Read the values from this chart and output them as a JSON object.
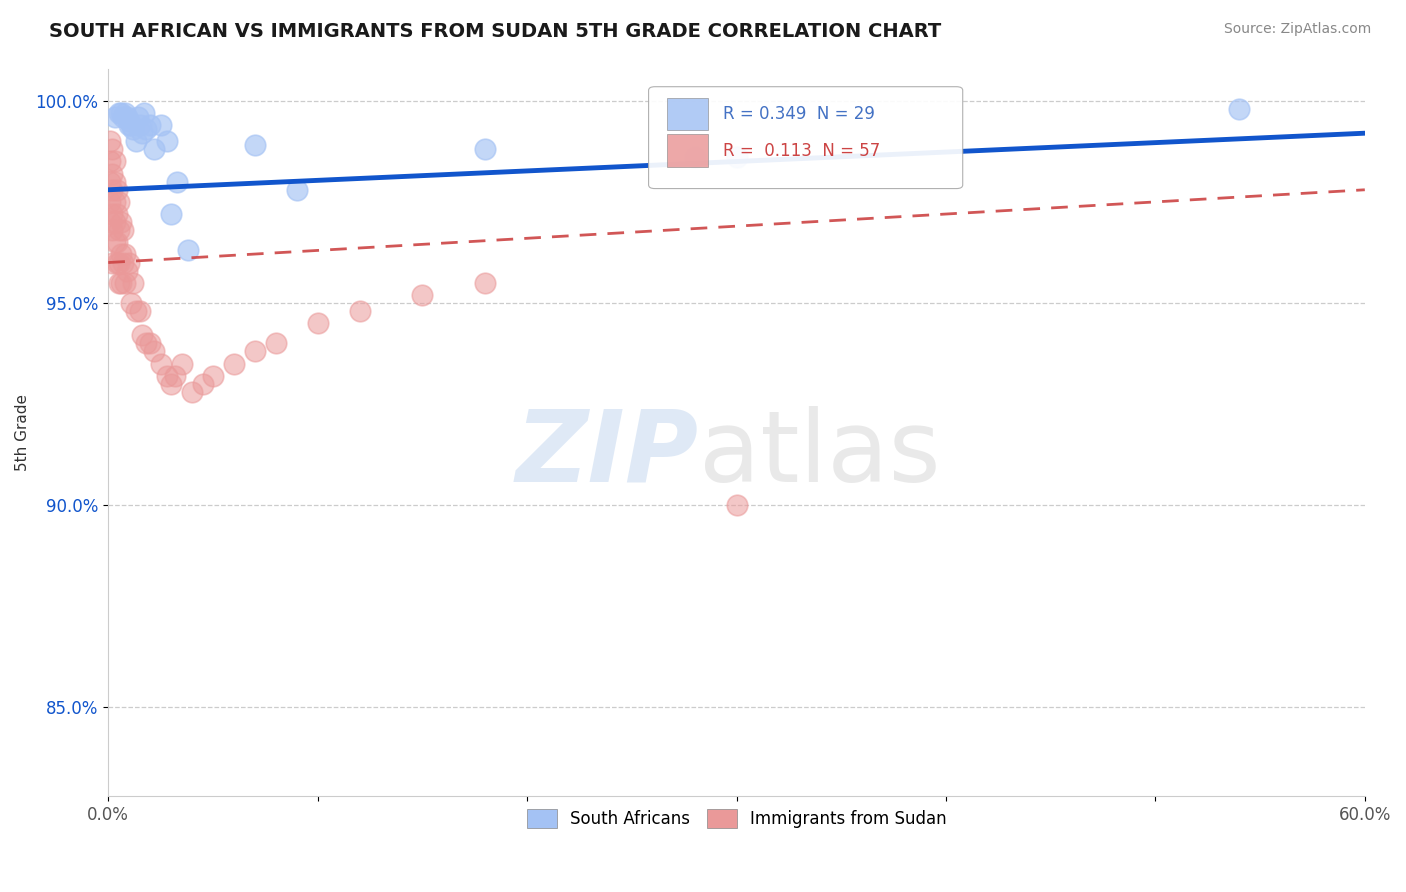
{
  "title": "SOUTH AFRICAN VS IMMIGRANTS FROM SUDAN 5TH GRADE CORRELATION CHART",
  "source_text": "Source: ZipAtlas.com",
  "ylabel": "5th Grade",
  "xlim": [
    0.0,
    0.6
  ],
  "ylim": [
    0.828,
    1.008
  ],
  "xticks": [
    0.0,
    0.1,
    0.2,
    0.3,
    0.4,
    0.5,
    0.6
  ],
  "xticklabels": [
    "0.0%",
    "",
    "",
    "",
    "",
    "",
    "60.0%"
  ],
  "yticks": [
    0.85,
    0.9,
    0.95,
    1.0
  ],
  "yticklabels": [
    "85.0%",
    "90.0%",
    "95.0%",
    "100.0%"
  ],
  "blue_R": 0.349,
  "blue_N": 29,
  "pink_R": 0.113,
  "pink_N": 57,
  "blue_color": "#a4c2f4",
  "pink_color": "#ea9999",
  "blue_line_color": "#1155cc",
  "pink_line_color": "#cc4444",
  "legend_R_color": "#4472c4",
  "legend_r_color": "#cc4444",
  "blue_scatter_x": [
    0.003,
    0.005,
    0.006,
    0.007,
    0.008,
    0.009,
    0.01,
    0.01,
    0.011,
    0.012,
    0.013,
    0.014,
    0.015,
    0.016,
    0.017,
    0.018,
    0.02,
    0.022,
    0.025,
    0.028,
    0.03,
    0.033,
    0.038,
    0.07,
    0.09,
    0.18,
    0.28,
    0.3,
    0.54
  ],
  "blue_scatter_y": [
    0.996,
    0.997,
    0.997,
    0.996,
    0.997,
    0.996,
    0.995,
    0.994,
    0.994,
    0.993,
    0.99,
    0.996,
    0.994,
    0.992,
    0.997,
    0.993,
    0.994,
    0.988,
    0.994,
    0.99,
    0.972,
    0.98,
    0.963,
    0.989,
    0.978,
    0.988,
    0.986,
    0.986,
    0.998
  ],
  "pink_scatter_x": [
    0.001,
    0.001,
    0.001,
    0.001,
    0.001,
    0.002,
    0.002,
    0.002,
    0.002,
    0.002,
    0.002,
    0.003,
    0.003,
    0.003,
    0.003,
    0.003,
    0.004,
    0.004,
    0.004,
    0.004,
    0.005,
    0.005,
    0.005,
    0.005,
    0.006,
    0.006,
    0.006,
    0.007,
    0.007,
    0.008,
    0.008,
    0.009,
    0.01,
    0.011,
    0.012,
    0.013,
    0.015,
    0.016,
    0.018,
    0.02,
    0.022,
    0.025,
    0.028,
    0.03,
    0.032,
    0.035,
    0.04,
    0.045,
    0.05,
    0.06,
    0.07,
    0.08,
    0.1,
    0.12,
    0.15,
    0.18,
    0.3
  ],
  "pink_scatter_y": [
    0.99,
    0.985,
    0.98,
    0.975,
    0.97,
    0.988,
    0.982,
    0.978,
    0.972,
    0.968,
    0.96,
    0.985,
    0.98,
    0.975,
    0.97,
    0.965,
    0.978,
    0.972,
    0.965,
    0.96,
    0.975,
    0.968,
    0.96,
    0.955,
    0.97,
    0.962,
    0.955,
    0.968,
    0.96,
    0.962,
    0.955,
    0.958,
    0.96,
    0.95,
    0.955,
    0.948,
    0.948,
    0.942,
    0.94,
    0.94,
    0.938,
    0.935,
    0.932,
    0.93,
    0.932,
    0.935,
    0.928,
    0.93,
    0.932,
    0.935,
    0.938,
    0.94,
    0.945,
    0.948,
    0.952,
    0.955,
    0.9
  ],
  "blue_trendline_x": [
    0.0,
    0.6
  ],
  "blue_trendline_y": [
    0.978,
    0.992
  ],
  "pink_trendline_x": [
    0.0,
    0.6
  ],
  "pink_trendline_y": [
    0.96,
    0.978
  ]
}
